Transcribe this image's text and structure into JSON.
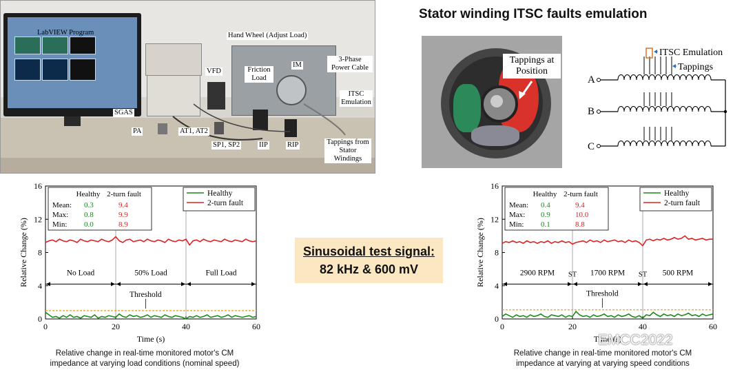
{
  "photo": {
    "labels": {
      "labview": "LabVIEW Program",
      "hand_wheel": "Hand Wheel (Adjust Load)",
      "vfd": "VFD",
      "friction": "Friction Load",
      "im": "IM",
      "cable": "3-Phase Power Cable",
      "itsc": "ITSC Emulation",
      "sgas": "SGAS",
      "pa": "PA",
      "at": "AT1, AT2",
      "sp": "SP1, SP2",
      "iip": "IIP",
      "rip": "RIP",
      "tappings": "Tappings from Stator Windings"
    }
  },
  "section_title": "Stator winding ITSC faults emulation",
  "motor_label": "Tappings at Position",
  "winding": {
    "itsc_label": "ITSC Emulation",
    "tappings_label": "Tappings",
    "phases": [
      "A",
      "B",
      "C"
    ]
  },
  "signal": {
    "line1": "Sinusoidal test signal:",
    "line2": "82 kHz & 600 mV"
  },
  "chart_data": [
    {
      "type": "line",
      "xlabel": "Time (s)",
      "ylabel": "Relative Change (%)",
      "xlim": [
        0,
        60
      ],
      "ylim": [
        0,
        16
      ],
      "xticks": [
        "0",
        "20",
        "40",
        "60"
      ],
      "yticks": [
        "0",
        "4",
        "8",
        "12",
        "16"
      ],
      "legend": {
        "position": "top-right",
        "entries": [
          "Healthy",
          "2-turn fault"
        ]
      },
      "colors": {
        "healthy": "#1a8a1a",
        "fault": "#e02020",
        "threshold": "#f0a020"
      },
      "stats": {
        "headers": [
          "Healthy",
          "2-turn fault"
        ],
        "rows": [
          {
            "label": "Mean:",
            "healthy": "0.3",
            "fault": "9.4"
          },
          {
            "label": "Max:",
            "healthy": "0.8",
            "fault": "9.9"
          },
          {
            "label": "Min:",
            "healthy": "0.0",
            "fault": "8.9"
          }
        ]
      },
      "regions": [
        "No Load",
        "50% Load",
        "Full Load"
      ],
      "region_bounds": [
        0,
        20,
        40,
        60
      ],
      "threshold_label": "Threshold",
      "threshold": 1.0,
      "series": [
        {
          "name": "Healthy",
          "key": "healthy",
          "x": [
            0,
            1,
            2,
            3,
            4,
            5,
            6,
            7,
            8,
            9,
            10,
            11,
            12,
            13,
            14,
            15,
            16,
            17,
            18,
            19,
            20,
            21,
            22,
            23,
            24,
            25,
            26,
            27,
            28,
            29,
            30,
            31,
            32,
            33,
            34,
            35,
            36,
            37,
            38,
            39,
            40,
            41,
            42,
            43,
            44,
            45,
            46,
            47,
            48,
            49,
            50,
            51,
            52,
            53,
            54,
            55,
            56,
            57,
            58,
            59,
            60
          ],
          "y": [
            0.8,
            0.5,
            0.2,
            0.3,
            0.1,
            0.4,
            0.2,
            0.5,
            0.2,
            0.3,
            0.1,
            0.4,
            0.3,
            0.2,
            0.5,
            0.1,
            0.3,
            0.2,
            0.4,
            0.3,
            0.2,
            0.6,
            0.3,
            0.2,
            0.5,
            0.3,
            0.4,
            0.2,
            0.3,
            0.5,
            0.2,
            0.4,
            0.3,
            0.2,
            0.5,
            0.3,
            0.2,
            0.4,
            0.3,
            0.2,
            0.0,
            0.3,
            0.2,
            0.4,
            0.2,
            0.3,
            0.5,
            0.2,
            0.3,
            0.4,
            0.2,
            0.3,
            0.5,
            0.2,
            0.4,
            0.3,
            0.2,
            0.3,
            0.4,
            0.2,
            0.3
          ]
        },
        {
          "name": "2-turn fault",
          "key": "fault",
          "x": [
            0,
            1,
            2,
            3,
            4,
            5,
            6,
            7,
            8,
            9,
            10,
            11,
            12,
            13,
            14,
            15,
            16,
            17,
            18,
            19,
            20,
            21,
            22,
            23,
            24,
            25,
            26,
            27,
            28,
            29,
            30,
            31,
            32,
            33,
            34,
            35,
            36,
            37,
            38,
            39,
            40,
            41,
            42,
            43,
            44,
            45,
            46,
            47,
            48,
            49,
            50,
            51,
            52,
            53,
            54,
            55,
            56,
            57,
            58,
            59,
            60
          ],
          "y": [
            9.2,
            9.4,
            9.5,
            9.3,
            9.6,
            9.4,
            9.3,
            9.5,
            9.4,
            9.2,
            9.6,
            9.4,
            9.3,
            9.5,
            9.4,
            9.3,
            9.6,
            9.4,
            9.3,
            9.5,
            9.9,
            9.4,
            9.2,
            9.5,
            9.6,
            9.3,
            9.4,
            9.5,
            9.3,
            9.6,
            9.4,
            9.3,
            9.5,
            9.4,
            9.2,
            9.6,
            9.4,
            9.3,
            9.5,
            9.4,
            9.6,
            8.9,
            9.4,
            9.5,
            9.3,
            9.6,
            9.4,
            9.3,
            9.5,
            9.4,
            9.3,
            9.6,
            9.4,
            9.3,
            9.5,
            9.4,
            9.3,
            9.6,
            9.4,
            9.3,
            9.4
          ]
        }
      ],
      "caption": [
        "Relative change in real-time monitored motor's CM",
        "impedance at varying load conditions (nominal speed)"
      ]
    },
    {
      "type": "line",
      "xlabel": "Time (s)",
      "ylabel": "Relative Change (%)",
      "xlim": [
        0,
        60
      ],
      "ylim": [
        0,
        16
      ],
      "xticks": [
        "0",
        "20",
        "40",
        "60"
      ],
      "yticks": [
        "0",
        "4",
        "8",
        "12",
        "16"
      ],
      "legend": {
        "position": "top-right",
        "entries": [
          "Healthy",
          "2-turn fault"
        ]
      },
      "colors": {
        "healthy": "#1a8a1a",
        "fault": "#e02020",
        "threshold": "#f0a020"
      },
      "stats": {
        "headers": [
          "Healthy",
          "2-turn fault"
        ],
        "rows": [
          {
            "label": "Mean:",
            "healthy": "0.4",
            "fault": "9.4"
          },
          {
            "label": "Max:",
            "healthy": "0.9",
            "fault": "10.0"
          },
          {
            "label": "Min:",
            "healthy": "0.1",
            "fault": "8.8"
          }
        ]
      },
      "regions": [
        "2900 RPM",
        "1700 RPM",
        "500 RPM"
      ],
      "region_bounds": [
        0,
        20,
        40,
        60
      ],
      "transition_label": "ST",
      "threshold_label": "Threshold",
      "threshold": 1.1,
      "series": [
        {
          "name": "Healthy",
          "key": "healthy",
          "x": [
            0,
            1,
            2,
            3,
            4,
            5,
            6,
            7,
            8,
            9,
            10,
            11,
            12,
            13,
            14,
            15,
            16,
            17,
            18,
            19,
            20,
            21,
            22,
            23,
            24,
            25,
            26,
            27,
            28,
            29,
            30,
            31,
            32,
            33,
            34,
            35,
            36,
            37,
            38,
            39,
            40,
            41,
            42,
            43,
            44,
            45,
            46,
            47,
            48,
            49,
            50,
            51,
            52,
            53,
            54,
            55,
            56,
            57,
            58,
            59,
            60
          ],
          "y": [
            0.3,
            0.6,
            0.4,
            0.2,
            0.5,
            0.3,
            0.4,
            0.2,
            0.5,
            0.3,
            0.4,
            0.6,
            0.3,
            0.2,
            0.5,
            0.4,
            0.3,
            0.5,
            0.2,
            0.4,
            0.3,
            0.9,
            0.5,
            0.3,
            0.4,
            0.2,
            0.5,
            0.3,
            0.4,
            0.6,
            0.3,
            0.4,
            0.2,
            0.5,
            0.3,
            0.4,
            0.6,
            0.3,
            0.2,
            0.4,
            0.1,
            0.5,
            0.4,
            0.8,
            0.5,
            0.3,
            0.6,
            0.4,
            0.5,
            0.3,
            0.6,
            0.4,
            0.5,
            0.7,
            0.4,
            0.5,
            0.3,
            0.6,
            0.4,
            0.5,
            0.6
          ]
        },
        {
          "name": "2-turn fault",
          "key": "fault",
          "x": [
            0,
            1,
            2,
            3,
            4,
            5,
            6,
            7,
            8,
            9,
            10,
            11,
            12,
            13,
            14,
            15,
            16,
            17,
            18,
            19,
            20,
            21,
            22,
            23,
            24,
            25,
            26,
            27,
            28,
            29,
            30,
            31,
            32,
            33,
            34,
            35,
            36,
            37,
            38,
            39,
            40,
            41,
            42,
            43,
            44,
            45,
            46,
            47,
            48,
            49,
            50,
            51,
            52,
            53,
            54,
            55,
            56,
            57,
            58,
            59,
            60
          ],
          "y": [
            9.1,
            9.3,
            9.2,
            9.4,
            9.2,
            9.3,
            9.1,
            9.4,
            9.2,
            9.3,
            9.1,
            9.3,
            9.2,
            9.4,
            9.1,
            9.3,
            9.2,
            9.4,
            9.2,
            9.3,
            9.0,
            9.2,
            9.3,
            9.4,
            9.2,
            9.5,
            9.3,
            9.4,
            9.2,
            9.5,
            9.3,
            9.4,
            9.5,
            9.3,
            9.4,
            9.2,
            9.5,
            9.3,
            9.4,
            9.2,
            8.8,
            9.5,
            9.6,
            9.4,
            9.6,
            9.5,
            9.7,
            9.5,
            9.6,
            9.8,
            9.6,
            9.7,
            10.0,
            9.6,
            9.7,
            9.5,
            9.6,
            9.7,
            9.5,
            9.6,
            9.6
          ]
        }
      ],
      "caption": [
        "Relative change in real-time monitored motor's CM",
        "impedance at varying at varying speed conditions"
      ]
    }
  ],
  "watermark": "EMCC2022"
}
